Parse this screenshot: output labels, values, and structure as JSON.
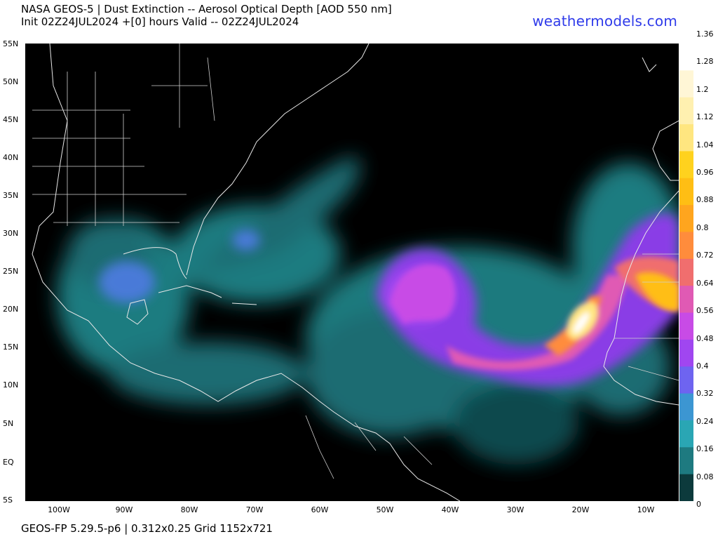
{
  "header": {
    "title_line1": "NASA GEOS-5 | Dust Extinction -- Aerosol Optical Depth [AOD 550 nm]",
    "title_line2": "Init 02Z24JUL2024 +[0] hours Valid -- 02Z24JUL2024",
    "brand": "weathermodels.com"
  },
  "footer": {
    "model_info": "GEOS-FP 5.29.5-p6 | 0.312x0.25 Grid 1152x721"
  },
  "axes": {
    "lat_labels": [
      "55N",
      "50N",
      "45N",
      "40N",
      "35N",
      "30N",
      "25N",
      "20N",
      "15N",
      "10N",
      "5N",
      "EQ",
      "5S"
    ],
    "lon_labels": [
      "100W",
      "90W",
      "80W",
      "70W",
      "60W",
      "50W",
      "40W",
      "30W",
      "20W",
      "10W"
    ]
  },
  "colorbar": {
    "labels": [
      "1.36",
      "1.28",
      "1.2",
      "1.12",
      "1.04",
      "0.96",
      "0.88",
      "0.8",
      "0.72",
      "0.64",
      "0.56",
      "0.48",
      "0.4",
      "0.32",
      "0.24",
      "0.16",
      "0.08",
      "0"
    ],
    "colors": [
      "#ffffff",
      "#fff6d6",
      "#fff0b0",
      "#ffe680",
      "#ffd21e",
      "#ffbe14",
      "#ffa51e",
      "#ff8c3c",
      "#f06e6e",
      "#e05ab4",
      "#c84be6",
      "#a046f0",
      "#6e64f0",
      "#3c96d2",
      "#2aa6b4",
      "#1e7a80",
      "#0c3a3c",
      "#000000"
    ]
  },
  "chart_data": {
    "type": "heatmap",
    "title": "NASA GEOS-5 | Dust Extinction -- Aerosol Optical Depth [AOD 550 nm]",
    "variable": "Dust AOD 550 nm",
    "lat_range": [
      "5S",
      "55N"
    ],
    "lon_range": [
      "105W",
      "5W"
    ],
    "colorbar_range": [
      0,
      1.36
    ],
    "features": [
      {
        "region": "West Africa coast ~20N 17W",
        "aod_approx": 1.2
      },
      {
        "region": "Central tropical Atlantic dust plume 15-25N 25-50W",
        "aod_approx": 0.6
      },
      {
        "region": "Gulf of Mexico / Yucatan",
        "aod_approx": 0.35
      },
      {
        "region": "Western Atlantic off US East Coast",
        "aod_approx": 0.25
      }
    ]
  }
}
